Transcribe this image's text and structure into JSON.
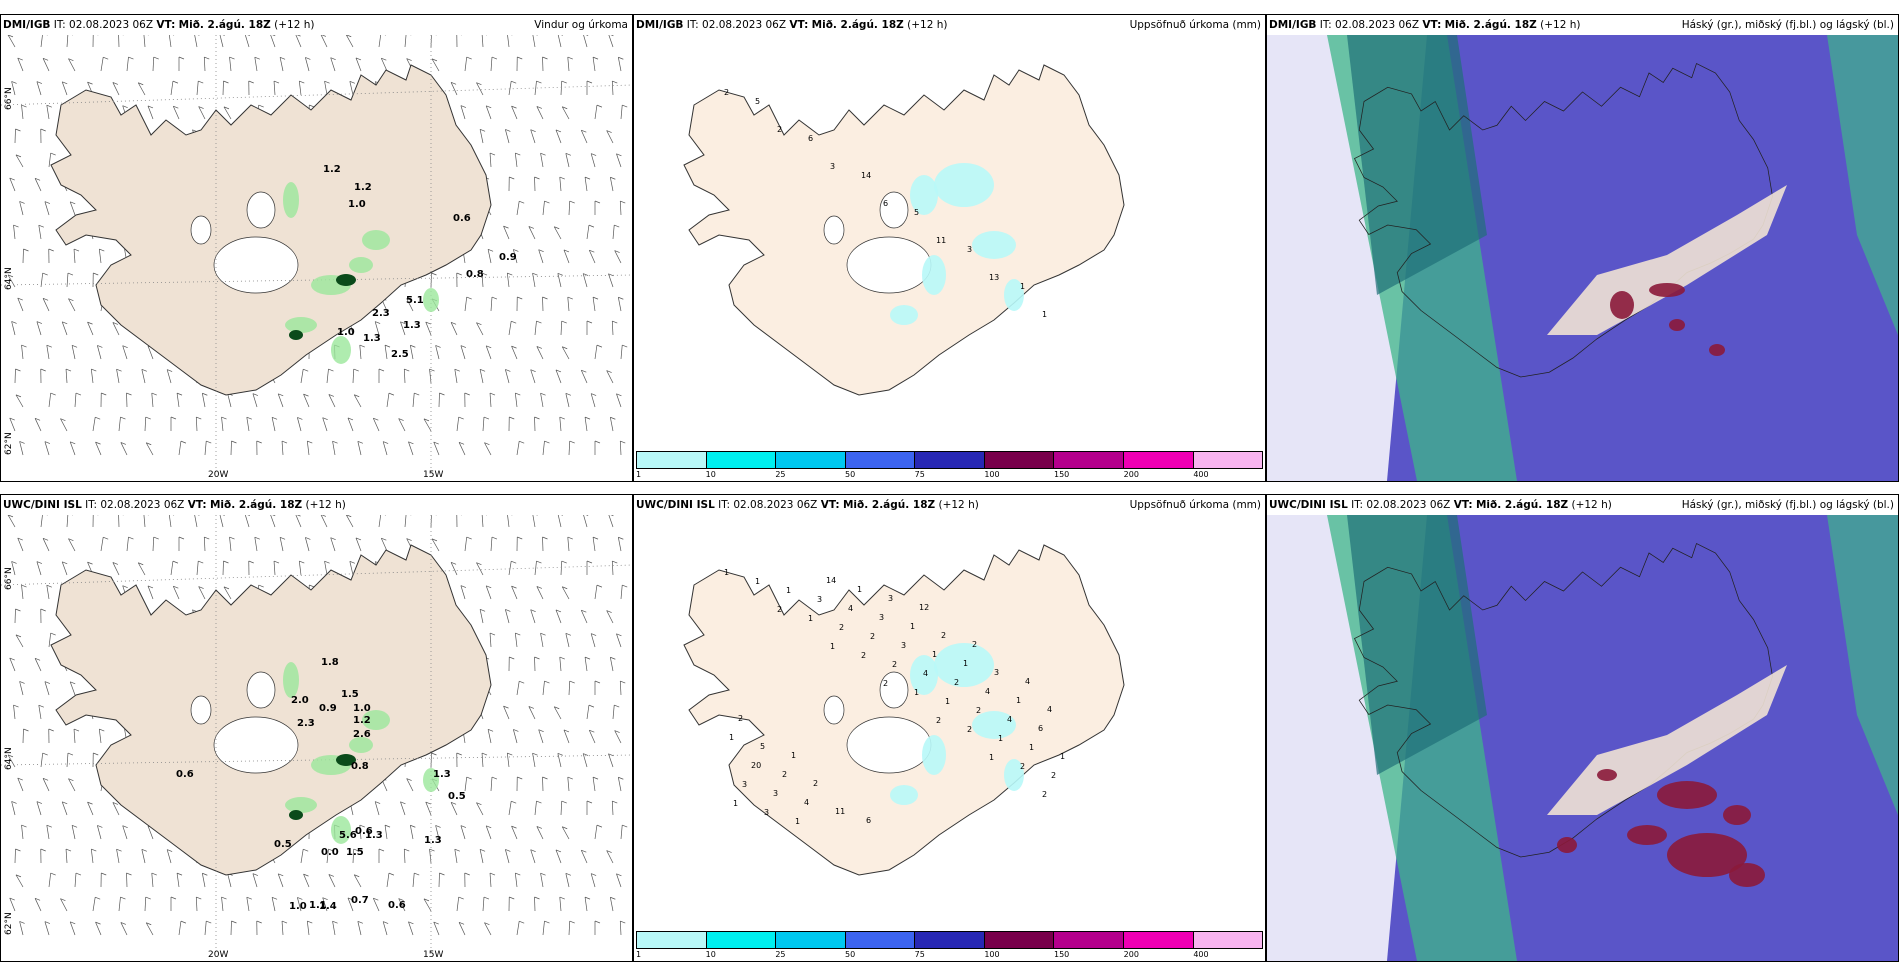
{
  "panels": [
    {
      "model": "DMI/IGB",
      "it": "IT: 02.08.2023 06Z",
      "vt_label": "VT:",
      "vt": "Mið. 2.ágú. 18Z",
      "lead": "(+12 h)",
      "field": "Vindur og úrkoma",
      "kind": "wind"
    },
    {
      "model": "DMI/IGB",
      "it": "IT: 02.08.2023 06Z",
      "vt_label": "VT:",
      "vt": "Mið. 2.ágú. 18Z",
      "lead": "(+12 h)",
      "field": "Uppsöfnuð úrkoma (mm)",
      "kind": "precip"
    },
    {
      "model": "DMI/IGB",
      "it": "IT: 02.08.2023 06Z",
      "vt_label": "VT:",
      "vt": "Mið. 2.ágú. 18Z",
      "lead": "(+12 h)",
      "field": "Háský (gr.), miðský (fj.bl.) og lágský (bl.)",
      "kind": "cloud"
    },
    {
      "model": "UWC/DINI ISL",
      "it": "IT: 02.08.2023 06Z",
      "vt_label": "VT:",
      "vt": "Mið. 2.ágú. 18Z",
      "lead": "(+12 h)",
      "field": "",
      "kind": "wind"
    },
    {
      "model": "UWC/DINI ISL",
      "it": "IT: 02.08.2023 06Z",
      "vt_label": "VT:",
      "vt": "Mið. 2.ágú. 18Z",
      "lead": "(+12 h)",
      "field": "Uppsöfnuð úrkoma (mm)",
      "kind": "precip"
    },
    {
      "model": "UWC/DINI ISL",
      "it": "IT: 02.08.2023 06Z",
      "vt_label": "VT:",
      "vt": "Mið. 2.ágú. 18Z",
      "lead": "(+12 h)",
      "field": "Háský (gr.), miðský (fj.bl.) og lágský (bl.)",
      "kind": "cloud"
    }
  ],
  "axes": {
    "lat_labels": [
      "66°N",
      "64°N",
      "62°N"
    ],
    "lon_labels": [
      "20W",
      "15W"
    ]
  },
  "legend": {
    "labels": [
      "1",
      "10",
      "25",
      "50",
      "75",
      "100",
      "150",
      "200",
      "400"
    ],
    "colors": [
      "#b8f8f8",
      "#00f0f0",
      "#00c8f0",
      "#3c64f0",
      "#2828b4",
      "#78004b",
      "#b4008c",
      "#f000b4",
      "#f8b4f0"
    ]
  },
  "wind_values_top": [
    "1.2",
    "1.2",
    "1.0",
    "0.6",
    "0.9",
    "0.8",
    "5.1",
    "2.3",
    "1.3",
    "1.0",
    "1.3",
    "2.5"
  ],
  "wind_values_bottom": [
    "1.8",
    "2.0",
    "0.9",
    "1.5",
    "1.0",
    "1.2",
    "2.3",
    "2.6",
    "0.6",
    "0.8",
    "1.3",
    "0.5",
    "0.5",
    "5.6",
    "0.6",
    "1.3",
    "0.0",
    "1.5",
    "1.3",
    "1.0",
    "1.1",
    "1.4",
    "0.7",
    "0.6"
  ],
  "precip_counts_top": [
    "2",
    "2",
    "3",
    "6",
    "11",
    "13",
    "1",
    "5",
    "6",
    "14",
    "5",
    "3",
    "1"
  ],
  "precip_counts_bottom": [
    "1",
    "2",
    "1",
    "2",
    "2",
    "1",
    "2",
    "1",
    "1",
    "2",
    "1",
    "2",
    "2",
    "1",
    "1",
    "2",
    "2",
    "1",
    "1",
    "2",
    "3",
    "3",
    "2",
    "4",
    "2",
    "1",
    "3",
    "1",
    "4",
    "3",
    "2",
    "4",
    "1",
    "3",
    "14",
    "3",
    "1",
    "4",
    "6",
    "20",
    "4",
    "1",
    "1",
    "1",
    "1",
    "1",
    "2",
    "11",
    "3",
    "2",
    "3",
    "4",
    "5",
    "2",
    "6",
    "12",
    "2",
    "4",
    "2",
    "1"
  ]
}
